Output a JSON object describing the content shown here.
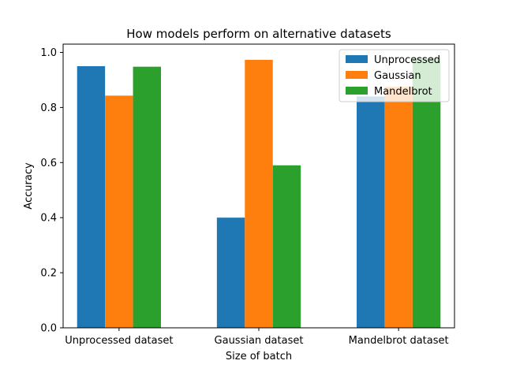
{
  "chart_data": {
    "type": "bar",
    "title": "How models perform on alternative datasets",
    "xlabel": "Size of batch",
    "ylabel": "Accuracy",
    "ylim": [
      0,
      1.03
    ],
    "yticks": [
      "0.0",
      "0.2",
      "0.4",
      "0.6",
      "0.8",
      "1.0"
    ],
    "categories": [
      "Unprocessed dataset",
      "Gaussian dataset",
      "Mandelbrot dataset"
    ],
    "series": [
      {
        "name": "Unprocessed",
        "color": "#1f77b4",
        "values": [
          0.95,
          0.4,
          0.84
        ]
      },
      {
        "name": "Gaussian",
        "color": "#ff7f0e",
        "values": [
          0.843,
          0.973,
          0.875
        ]
      },
      {
        "name": "Mandelbrot",
        "color": "#2ca02c",
        "values": [
          0.948,
          0.59,
          0.98
        ]
      }
    ],
    "legend": "top-right",
    "grid": false
  }
}
